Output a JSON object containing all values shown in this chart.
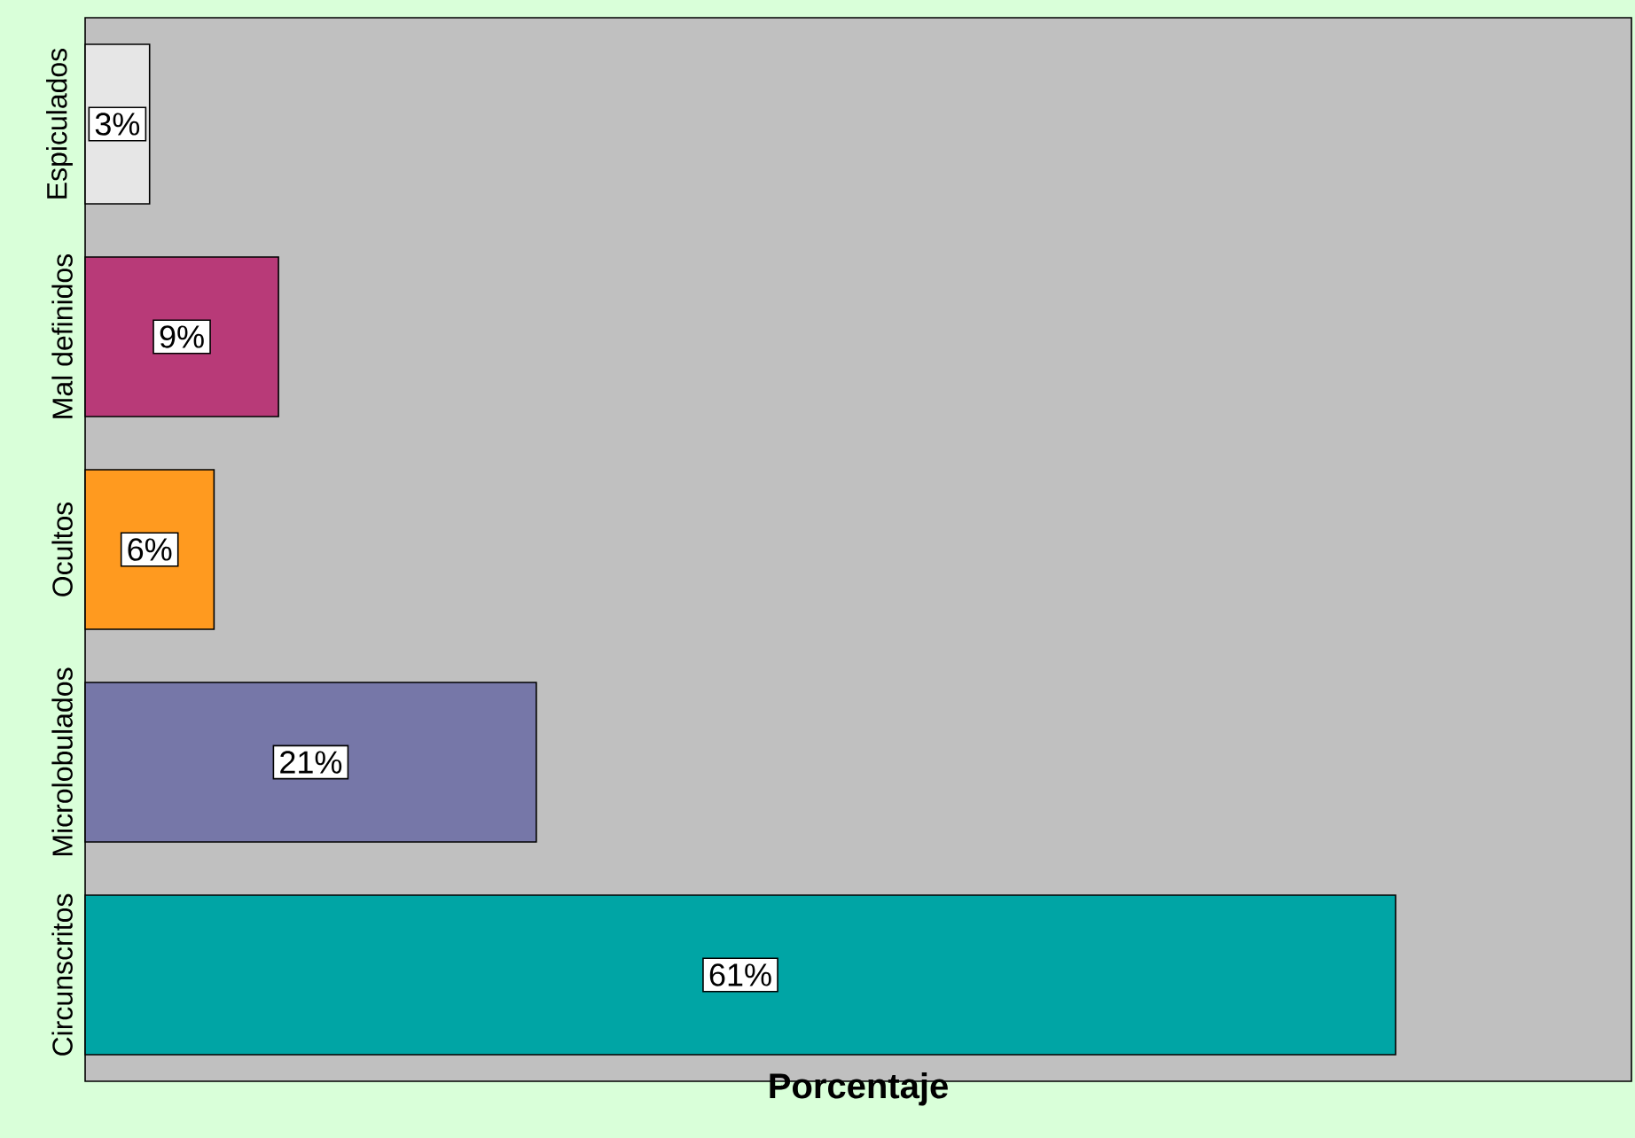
{
  "chart_data": {
    "type": "bar",
    "orientation": "horizontal",
    "xlabel": "Porcentaje",
    "categories": [
      "Espiculados",
      "Mal definidos",
      "Ocultos",
      "Microlobulados",
      "Circunscritos"
    ],
    "values": [
      3,
      9,
      6,
      21,
      61
    ],
    "value_labels": [
      "3%",
      "9%",
      "6%",
      "21%",
      "61%"
    ],
    "colors": [
      "#e6e6e6",
      "#b83a78",
      "#ff9a1f",
      "#7677a8",
      "#00a5a5"
    ],
    "tick_labels": "y"
  }
}
